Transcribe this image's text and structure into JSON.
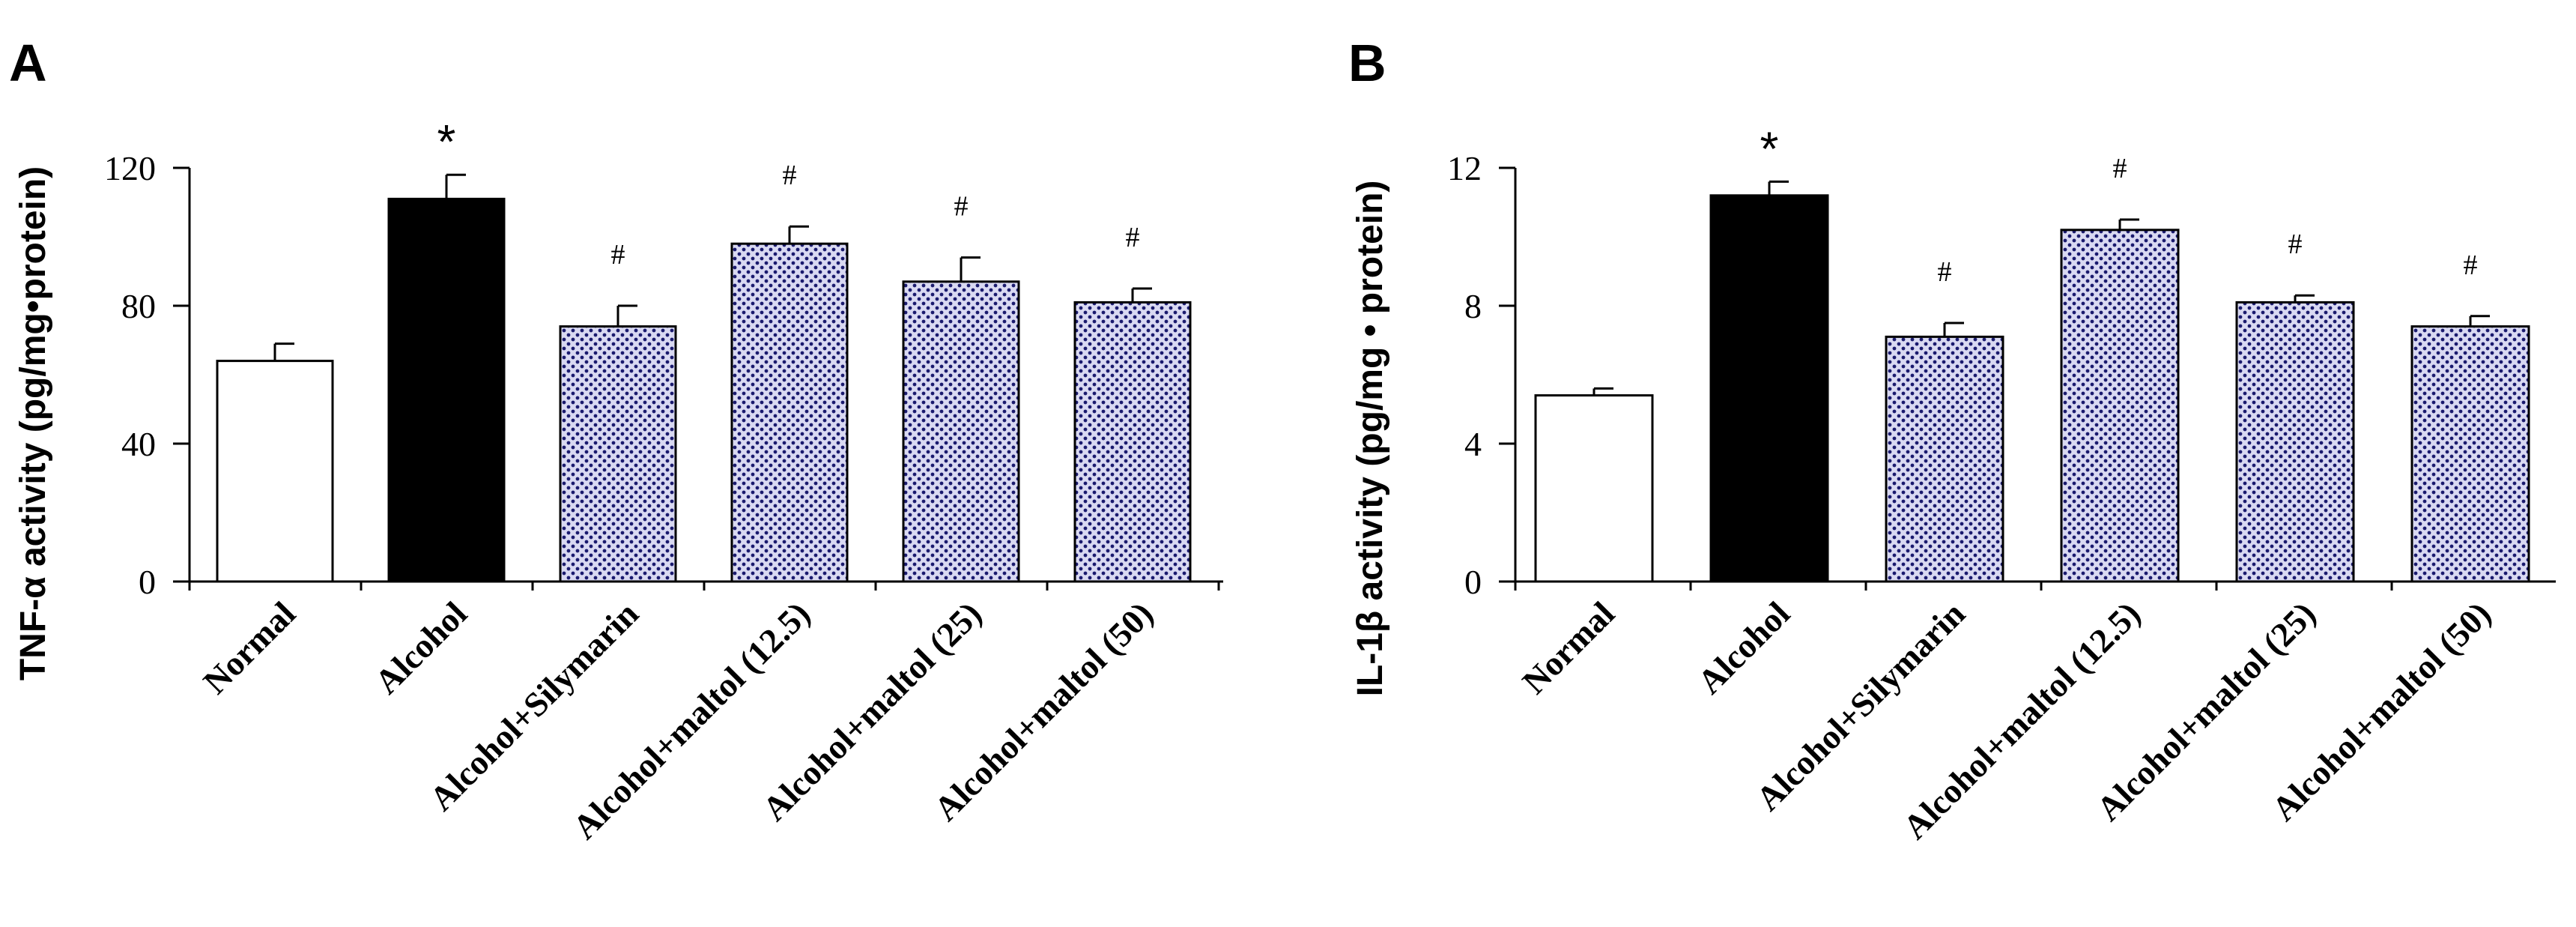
{
  "colors": {
    "normal": "#ffffff",
    "alcohol": "#000000",
    "treated_fill": "#d9d9f2",
    "treated_dot": "#1a1a6e",
    "stroke": "#000000"
  },
  "chart_data": [
    {
      "type": "bar",
      "panel": "A",
      "ylabel": "TNF-α activity (pg/mg•protein)",
      "xlabel": "",
      "ylim": [
        0,
        120
      ],
      "yticks": [
        0,
        40,
        80,
        120
      ],
      "categories": [
        "Normal",
        "Alcohol",
        "Alcohol+Silymarin",
        "Alcohol+maltol (12.5)",
        "Alcohol+maltol (25)",
        "Alcohol+maltol (50)"
      ],
      "values": [
        64,
        111,
        74,
        98,
        87,
        81
      ],
      "errors": [
        5,
        7,
        6,
        5,
        7,
        4
      ],
      "styles": [
        "open",
        "solid",
        "dotted",
        "dotted",
        "dotted",
        "dotted"
      ],
      "annotations": [
        "",
        "*",
        "#",
        "#",
        "#",
        "#"
      ]
    },
    {
      "type": "bar",
      "panel": "B",
      "ylabel": "IL-1β activity (pg/mg • protein)",
      "xlabel": "",
      "ylim": [
        0,
        12
      ],
      "yticks": [
        0,
        4,
        8,
        12
      ],
      "categories": [
        "Normal",
        "Alcohol",
        "Alcohol+Silymarin",
        "Alcohol+maltol (12.5)",
        "Alcohol+maltol (25)",
        "Alcohol+maltol (50)"
      ],
      "values": [
        5.4,
        11.2,
        7.1,
        10.2,
        8.1,
        7.4
      ],
      "errors": [
        0.2,
        0.4,
        0.4,
        0.3,
        0.2,
        0.3
      ],
      "styles": [
        "open",
        "solid",
        "dotted",
        "dotted",
        "dotted",
        "dotted"
      ],
      "annotations": [
        "",
        "*",
        "#",
        "#",
        "#",
        "#"
      ]
    }
  ]
}
